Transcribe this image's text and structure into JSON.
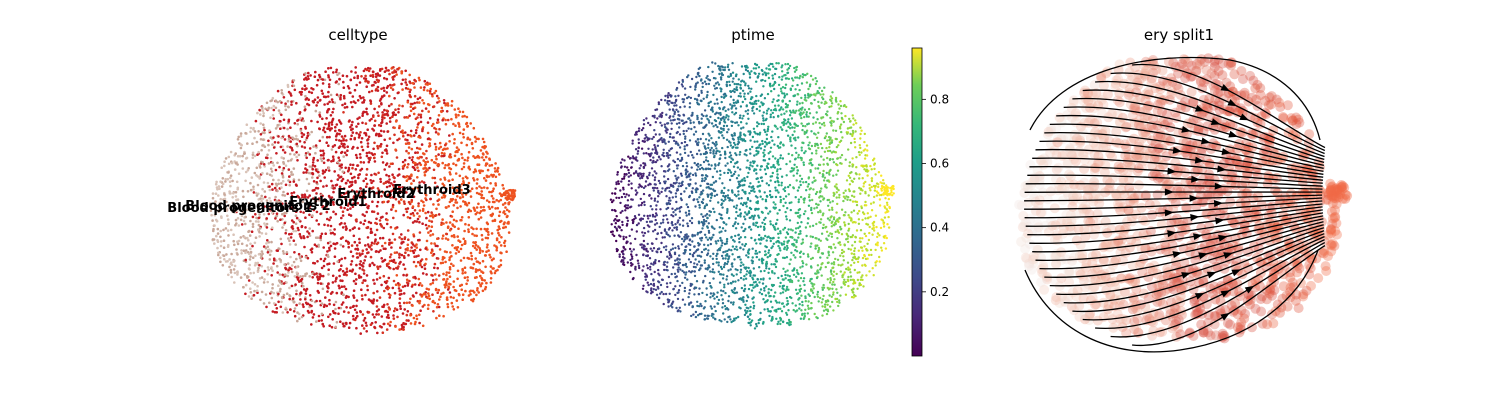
{
  "figure": {
    "panels": [
      {
        "title": "celltype"
      },
      {
        "title": "ptime"
      },
      {
        "title": "ery split1"
      }
    ]
  },
  "chart_data": [
    {
      "type": "scatter",
      "title": "celltype",
      "color_by": "celltype",
      "categories": [
        {
          "name": "Blood progenitors 1",
          "color": "#d9c3b8"
        },
        {
          "name": "Blood progenitors 2",
          "color": "#c9a89a"
        },
        {
          "name": "Erythroid1",
          "color": "#c51b22"
        },
        {
          "name": "Erythroid2",
          "color": "#d63222"
        },
        {
          "name": "Erythroid3",
          "color": "#ee5220"
        }
      ],
      "labels_on_data": [
        "Blood progenitors 2",
        "Blood progenitors 1",
        "Erythroid1",
        "Erythroid2",
        "Erythroid3"
      ],
      "axes_visible": false
    },
    {
      "type": "scatter",
      "title": "ptime",
      "color_by": "ptime",
      "colormap": "viridis",
      "colorbar": {
        "range": [
          0.0,
          0.96
        ],
        "ticks": [
          "0.2",
          "0.4",
          "0.6",
          "0.8"
        ],
        "tick_values": [
          0.2,
          0.4,
          0.6,
          0.8
        ]
      },
      "axes_visible": false
    },
    {
      "type": "streamplot",
      "title": "ery split1",
      "background_colormap": "Reds",
      "stream_color": "#000000",
      "axes_visible": false
    }
  ]
}
